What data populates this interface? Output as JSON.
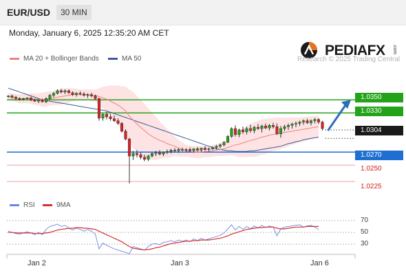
{
  "header": {
    "symbol": "EUR/USD",
    "timeframe": "30 MIN"
  },
  "datetime": "Monday, January 6, 2025 12:35:20 AM CET",
  "brand": {
    "name": "PEDIAFX",
    "suffix": ".com",
    "watermark": "Research © 2025 Trading Central"
  },
  "legend": {
    "bollinger": "MA 20 + Bollinger Bands",
    "ma50": "MA 50",
    "rsi": "RSI",
    "ma9": "9MA"
  },
  "colors": {
    "bull": "#24a31a",
    "bear": "#e02020",
    "ma20": "#f08080",
    "ma50": "#3a5a9a",
    "band_fill": "#fde3e3",
    "support_line": "#f0a0a0",
    "pivot": "#1e6fd0",
    "forecast_arrow": "#2c6bbf",
    "rsi_line": "#6a86e0",
    "rsi_ma": "#d43030"
  },
  "chart_data": [
    {
      "type": "candlestick",
      "title": "",
      "x_labels": [
        "Jan 2",
        "Jan 3",
        "Jan 6"
      ],
      "ylim": [
        1.0205,
        1.0405
      ],
      "current_price": "1.0304",
      "levels": [
        {
          "label": "1.0350",
          "value": 1.035,
          "kind": "resistance",
          "color": "#24a31a"
        },
        {
          "label": "1.0330",
          "value": 1.033,
          "kind": "resistance",
          "color": "#24a31a"
        },
        {
          "label": "1.0270",
          "value": 1.027,
          "kind": "pivot",
          "color": "#1e6fd0"
        },
        {
          "label": "1.0250",
          "value": 1.025,
          "kind": "support",
          "color": "#d62020"
        },
        {
          "label": "1.0225",
          "value": 1.0225,
          "kind": "support",
          "color": "#d62020"
        }
      ],
      "candles": [
        [
          1.0355,
          1.0357,
          1.0353,
          1.0356
        ],
        [
          1.0356,
          1.0358,
          1.0352,
          1.0354
        ],
        [
          1.0354,
          1.0356,
          1.035,
          1.0352
        ],
        [
          1.0352,
          1.0354,
          1.0349,
          1.0351
        ],
        [
          1.0351,
          1.0353,
          1.0349,
          1.0352
        ],
        [
          1.0352,
          1.0354,
          1.035,
          1.0353
        ],
        [
          1.0353,
          1.0355,
          1.0348,
          1.035
        ],
        [
          1.035,
          1.0352,
          1.0347,
          1.0348
        ],
        [
          1.0348,
          1.0351,
          1.0345,
          1.035
        ],
        [
          1.035,
          1.0352,
          1.0346,
          1.0347
        ],
        [
          1.0347,
          1.0354,
          1.0345,
          1.0352
        ],
        [
          1.0352,
          1.0359,
          1.035,
          1.0357
        ],
        [
          1.0357,
          1.0362,
          1.0354,
          1.036
        ],
        [
          1.036,
          1.0366,
          1.0358,
          1.0364
        ],
        [
          1.0364,
          1.0367,
          1.036,
          1.0362
        ],
        [
          1.0362,
          1.0366,
          1.0359,
          1.0364
        ],
        [
          1.0364,
          1.0366,
          1.0359,
          1.0361
        ],
        [
          1.0361,
          1.0363,
          1.0356,
          1.0358
        ],
        [
          1.0358,
          1.0362,
          1.0355,
          1.036
        ],
        [
          1.036,
          1.0363,
          1.0357,
          1.0359
        ],
        [
          1.0359,
          1.0362,
          1.0355,
          1.0357
        ],
        [
          1.0357,
          1.036,
          1.0353,
          1.0358
        ],
        [
          1.0358,
          1.0361,
          1.0354,
          1.0356
        ],
        [
          1.0356,
          1.0358,
          1.035,
          1.0352
        ],
        [
          1.0352,
          1.0353,
          1.0318,
          1.0322
        ],
        [
          1.0322,
          1.033,
          1.0318,
          1.0328
        ],
        [
          1.0328,
          1.0332,
          1.032,
          1.0324
        ],
        [
          1.0324,
          1.0328,
          1.0318,
          1.0321
        ],
        [
          1.0321,
          1.0326,
          1.0316,
          1.0318
        ],
        [
          1.0318,
          1.0322,
          1.0312,
          1.0314
        ],
        [
          1.0314,
          1.0316,
          1.03,
          1.0302
        ],
        [
          1.0302,
          1.0305,
          1.0288,
          1.029
        ],
        [
          1.029,
          1.0292,
          1.0222,
          1.0264
        ],
        [
          1.0264,
          1.0272,
          1.0258,
          1.0268
        ],
        [
          1.0268,
          1.0273,
          1.0262,
          1.0266
        ],
        [
          1.0266,
          1.027,
          1.0259,
          1.0262
        ],
        [
          1.0262,
          1.0266,
          1.0256,
          1.0259
        ],
        [
          1.0259,
          1.0266,
          1.0256,
          1.0264
        ],
        [
          1.0264,
          1.027,
          1.0262,
          1.0268
        ],
        [
          1.0268,
          1.0272,
          1.0264,
          1.0269
        ],
        [
          1.0269,
          1.0273,
          1.0265,
          1.0267
        ],
        [
          1.0267,
          1.0271,
          1.0264,
          1.027
        ],
        [
          1.027,
          1.0274,
          1.0267,
          1.0271
        ],
        [
          1.0271,
          1.0275,
          1.0268,
          1.0273
        ],
        [
          1.0273,
          1.0276,
          1.027,
          1.0272
        ],
        [
          1.0272,
          1.0276,
          1.0269,
          1.0274
        ],
        [
          1.0274,
          1.0277,
          1.0271,
          1.0273
        ],
        [
          1.0273,
          1.0276,
          1.027,
          1.0274
        ],
        [
          1.0274,
          1.0277,
          1.027,
          1.0272
        ],
        [
          1.0272,
          1.0276,
          1.0269,
          1.0275
        ],
        [
          1.0275,
          1.0278,
          1.0271,
          1.0273
        ],
        [
          1.0273,
          1.0277,
          1.027,
          1.0276
        ],
        [
          1.0276,
          1.0279,
          1.0272,
          1.0274
        ],
        [
          1.0274,
          1.0277,
          1.0271,
          1.0275
        ],
        [
          1.0275,
          1.0279,
          1.0273,
          1.0277
        ],
        [
          1.0277,
          1.0281,
          1.0274,
          1.0279
        ],
        [
          1.0279,
          1.0283,
          1.0276,
          1.0281
        ],
        [
          1.0281,
          1.0287,
          1.0279,
          1.0285
        ],
        [
          1.0285,
          1.0296,
          1.0284,
          1.0294
        ],
        [
          1.0294,
          1.0308,
          1.0292,
          1.0306
        ],
        [
          1.0306,
          1.0311,
          1.0294,
          1.0297
        ],
        [
          1.0297,
          1.0306,
          1.0293,
          1.0304
        ],
        [
          1.0304,
          1.0309,
          1.0298,
          1.0301
        ],
        [
          1.0301,
          1.0309,
          1.0297,
          1.0306
        ],
        [
          1.0306,
          1.0312,
          1.03,
          1.0303
        ],
        [
          1.0303,
          1.031,
          1.0299,
          1.0308
        ],
        [
          1.0308,
          1.0313,
          1.0304,
          1.0306
        ],
        [
          1.0306,
          1.0312,
          1.03,
          1.031
        ],
        [
          1.031,
          1.0314,
          1.0305,
          1.0307
        ],
        [
          1.0307,
          1.0313,
          1.0303,
          1.0311
        ],
        [
          1.0311,
          1.0315,
          1.0306,
          1.0309
        ],
        [
          1.0309,
          1.0314,
          1.0296,
          1.0298
        ],
        [
          1.0298,
          1.031,
          1.0292,
          1.0306
        ],
        [
          1.0306,
          1.0312,
          1.0302,
          1.0309
        ],
        [
          1.0309,
          1.0314,
          1.0304,
          1.0311
        ],
        [
          1.0311,
          1.0315,
          1.0306,
          1.0313
        ],
        [
          1.0313,
          1.0317,
          1.0308,
          1.0314
        ],
        [
          1.0314,
          1.0318,
          1.031,
          1.0316
        ],
        [
          1.0316,
          1.032,
          1.0312,
          1.0318
        ],
        [
          1.0318,
          1.0321,
          1.0313,
          1.0315
        ],
        [
          1.0315,
          1.032,
          1.0311,
          1.0318
        ],
        [
          1.0318,
          1.0322,
          1.0314,
          1.032
        ],
        [
          1.032,
          1.0322,
          1.0313,
          1.0316
        ],
        [
          1.0316,
          1.0318,
          1.0303,
          1.0306
        ]
      ],
      "ma20": [
        1.0355,
        1.0354,
        1.0353,
        1.0352,
        1.0352,
        1.0352,
        1.0352,
        1.0351,
        1.0351,
        1.035,
        1.0351,
        1.0352,
        1.0353,
        1.0354,
        1.0355,
        1.0356,
        1.0357,
        1.0358,
        1.0358,
        1.0358,
        1.0358,
        1.0358,
        1.0357,
        1.0357,
        1.0355,
        1.0353,
        1.0351,
        1.0348,
        1.0345,
        1.0342,
        1.0338,
        1.0333,
        1.0325,
        1.0319,
        1.0313,
        1.0308,
        1.0303,
        1.0298,
        1.0294,
        1.0291,
        1.0288,
        1.0286,
        1.0283,
        1.0281,
        1.0279,
        1.0276,
        1.0274,
        1.0272,
        1.0271,
        1.027,
        1.027,
        1.027,
        1.0271,
        1.0271,
        1.0272,
        1.0273,
        1.0274,
        1.0275,
        1.0277,
        1.0279,
        1.0281,
        1.0282,
        1.0284,
        1.0286,
        1.0288,
        1.0289,
        1.0291,
        1.0293,
        1.0294,
        1.0296,
        1.0297,
        1.0298,
        1.0299,
        1.03,
        1.0301,
        1.0302,
        1.0303,
        1.0304,
        1.0305,
        1.0306,
        1.0307,
        1.0308,
        1.0309
      ],
      "bb_upper": [
        1.036,
        1.036,
        1.0359,
        1.0359,
        1.0359,
        1.0359,
        1.036,
        1.036,
        1.036,
        1.0361,
        1.0362,
        1.0363,
        1.0364,
        1.0366,
        1.0367,
        1.0368,
        1.0368,
        1.0368,
        1.0367,
        1.0366,
        1.0366,
        1.0366,
        1.0366,
        1.0366,
        1.0368,
        1.037,
        1.0371,
        1.0372,
        1.0372,
        1.0372,
        1.0371,
        1.037,
        1.0366,
        1.0362,
        1.0356,
        1.035,
        1.0344,
        1.0337,
        1.033,
        1.0324,
        1.0317,
        1.0311,
        1.0305,
        1.03,
        1.0294,
        1.0289,
        1.0285,
        1.0281,
        1.028,
        1.0279,
        1.0279,
        1.0279,
        1.028,
        1.028,
        1.0281,
        1.0282,
        1.0284,
        1.0286,
        1.0289,
        1.0293,
        1.0298,
        1.0302,
        1.0306,
        1.031,
        1.0313,
        1.0316,
        1.0318,
        1.032,
        1.0321,
        1.0322,
        1.0322,
        1.0323,
        1.0323,
        1.0323,
        1.0323,
        1.0323,
        1.0323,
        1.0323,
        1.0324,
        1.0324,
        1.0325,
        1.0325,
        1.0326
      ],
      "bb_lower": [
        1.035,
        1.0348,
        1.0347,
        1.0345,
        1.0345,
        1.0345,
        1.0344,
        1.0342,
        1.0342,
        1.0339,
        1.034,
        1.0341,
        1.0342,
        1.0342,
        1.0343,
        1.0344,
        1.0346,
        1.0348,
        1.0349,
        1.035,
        1.035,
        1.035,
        1.0348,
        1.0348,
        1.0342,
        1.0336,
        1.0331,
        1.0324,
        1.0318,
        1.0312,
        1.0305,
        1.0296,
        1.0284,
        1.0276,
        1.027,
        1.0266,
        1.0262,
        1.0259,
        1.0258,
        1.0258,
        1.0259,
        1.0261,
        1.0261,
        1.0262,
        1.0264,
        1.0263,
        1.0263,
        1.0263,
        1.0262,
        1.0261,
        1.0261,
        1.0261,
        1.0262,
        1.0262,
        1.0263,
        1.0264,
        1.0264,
        1.0264,
        1.0265,
        1.0265,
        1.0264,
        1.0262,
        1.0262,
        1.0262,
        1.0263,
        1.0262,
        1.0264,
        1.0266,
        1.0267,
        1.027,
        1.0272,
        1.0273,
        1.0275,
        1.0277,
        1.0279,
        1.0281,
        1.0283,
        1.0285,
        1.0286,
        1.0288,
        1.0289,
        1.0291,
        1.0292
      ],
      "ma50": [
        1.0368,
        1.0366,
        1.0364,
        1.0362,
        1.036,
        1.0358,
        1.0356,
        1.0354,
        1.0352,
        1.035,
        1.0349,
        1.0348,
        1.0347,
        1.0346,
        1.0345,
        1.0344,
        1.0343,
        1.0342,
        1.0341,
        1.034,
        1.0339,
        1.0338,
        1.0337,
        1.0336,
        1.0335,
        1.0334,
        1.0333,
        1.0331,
        1.0329,
        1.0327,
        1.0325,
        1.0323,
        1.0321,
        1.0319,
        1.0317,
        1.0315,
        1.0313,
        1.0311,
        1.0309,
        1.0307,
        1.0305,
        1.0303,
        1.0301,
        1.0299,
        1.0297,
        1.0295,
        1.0293,
        1.0291,
        1.0289,
        1.0287,
        1.0285,
        1.0283,
        1.0281,
        1.0279,
        1.0277,
        1.0275,
        1.0274,
        1.0273,
        1.0272,
        1.0272,
        1.0271,
        1.0271,
        1.0271,
        1.0271,
        1.0272,
        1.0272,
        1.0273,
        1.0274,
        1.0275,
        1.0276,
        1.0277,
        1.0278,
        1.0279,
        1.0281,
        1.0283,
        1.0284,
        1.0286,
        1.0287,
        1.0289,
        1.029,
        1.0291,
        1.0292,
        1.0293
      ]
    },
    {
      "type": "line",
      "title": "",
      "ylim": [
        15,
        85
      ],
      "ticks": [
        "70",
        "50",
        "30"
      ],
      "tick_values": [
        70,
        50,
        30
      ],
      "series": [
        {
          "name": "RSI",
          "values": [
            52,
            50,
            48,
            47,
            49,
            51,
            49,
            46,
            50,
            46,
            55,
            60,
            62,
            64,
            60,
            62,
            57,
            54,
            57,
            55,
            52,
            55,
            52,
            47,
            22,
            32,
            28,
            25,
            22,
            20,
            18,
            16,
            14,
            26,
            24,
            22,
            20,
            26,
            30,
            31,
            29,
            33,
            34,
            36,
            34,
            37,
            35,
            37,
            34,
            39,
            36,
            40,
            37,
            39,
            41,
            43,
            45,
            49,
            56,
            63,
            54,
            60,
            55,
            60,
            56,
            61,
            57,
            62,
            58,
            61,
            59,
            44,
            56,
            59,
            60,
            61,
            62,
            63,
            59,
            61,
            62,
            59,
            55
          ]
        },
        {
          "name": "9MA",
          "values": [
            50,
            50,
            49,
            49,
            49,
            49,
            49,
            48,
            48,
            48,
            49,
            50,
            52,
            54,
            55,
            56,
            57,
            57,
            58,
            58,
            57,
            57,
            56,
            55,
            52,
            49,
            46,
            43,
            40,
            37,
            34,
            30,
            26,
            23,
            22,
            21,
            20,
            21,
            22,
            24,
            25,
            27,
            29,
            31,
            32,
            33,
            34,
            35,
            35,
            36,
            36,
            37,
            37,
            37,
            38,
            39,
            40,
            42,
            44,
            47,
            49,
            51,
            53,
            55,
            56,
            57,
            58,
            58,
            59,
            59,
            59,
            57,
            56,
            56,
            57,
            58,
            59,
            59,
            59,
            60,
            60,
            60,
            60
          ]
        }
      ]
    }
  ]
}
